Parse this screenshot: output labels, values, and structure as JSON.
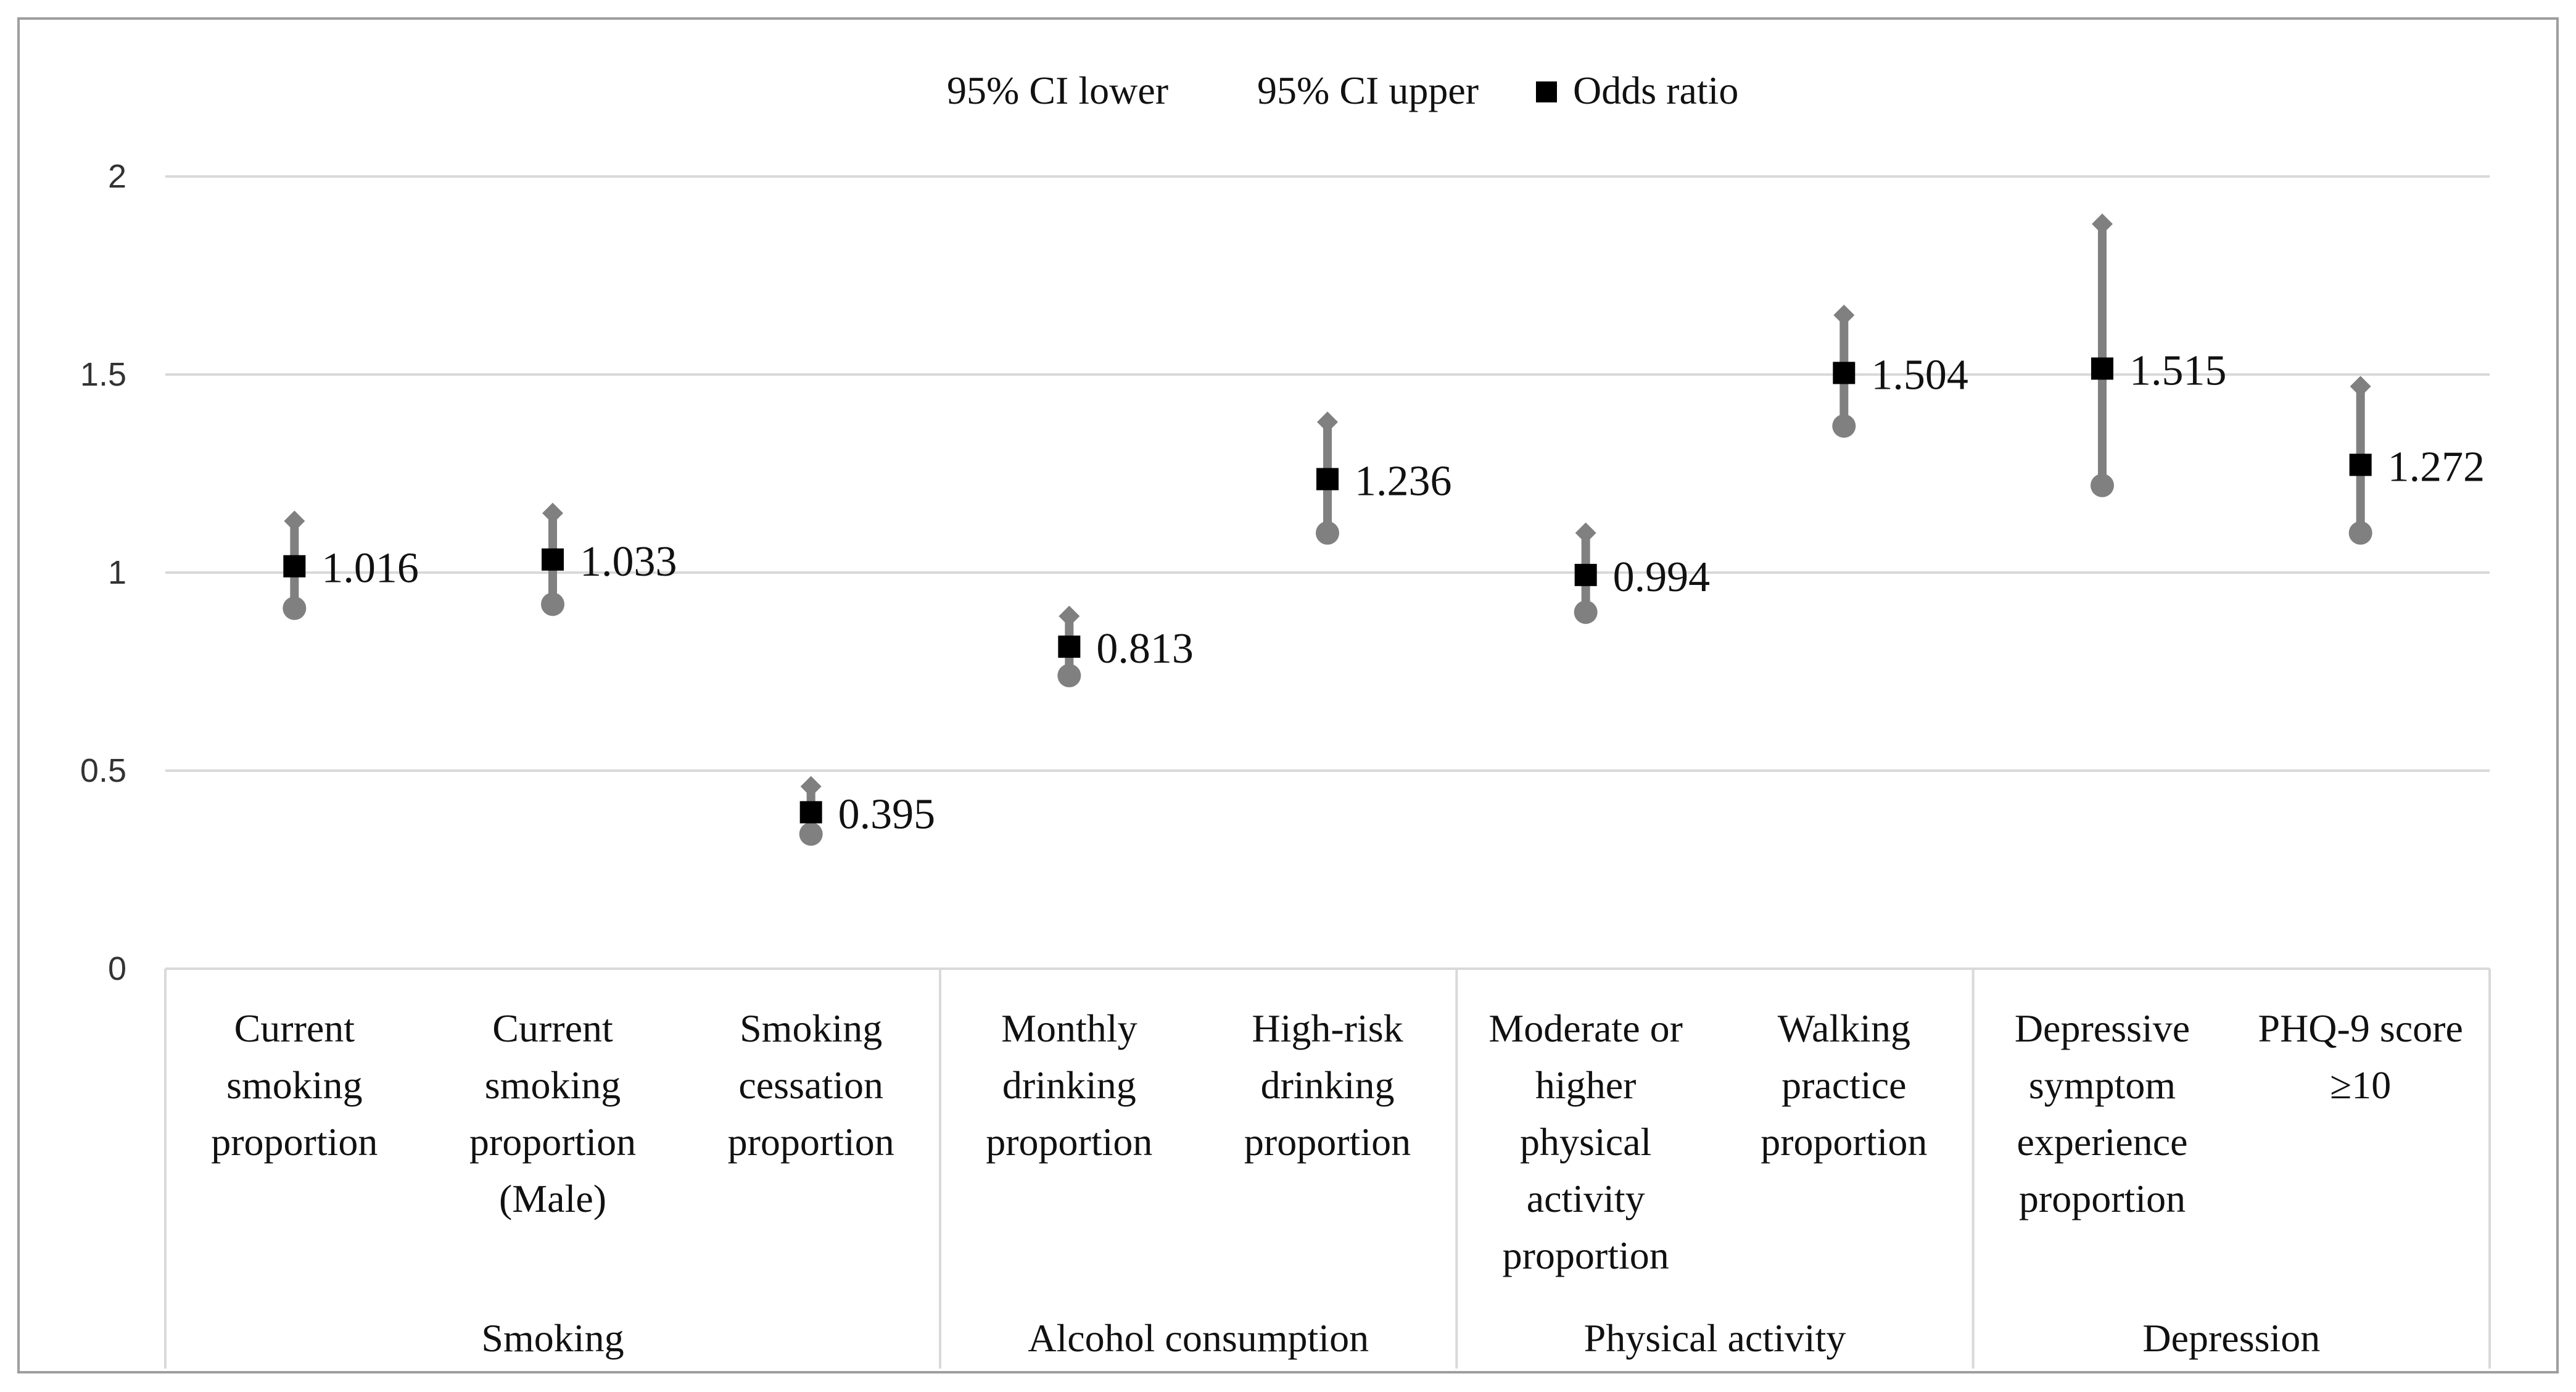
{
  "chart_data": {
    "type": "scatter",
    "title": "",
    "xlabel": "",
    "ylabel": "",
    "ylim": [
      0,
      2
    ],
    "yticks": [
      0,
      0.5,
      1,
      1.5,
      2
    ],
    "ytick_labels": [
      "0",
      "0.5",
      "1",
      "1.5",
      "2"
    ],
    "grid": true,
    "legend_position": "top-center",
    "legend": [
      {
        "name": "95% CI lower",
        "marker": "circle",
        "color": "#8a8a8a"
      },
      {
        "name": "95% CI upper",
        "marker": "diamond",
        "color": "#8a8a8a"
      },
      {
        "name": "Odds ratio",
        "marker": "square",
        "color": "#000000"
      }
    ],
    "categories": [
      {
        "lines": [
          "Current",
          "smoking",
          "proportion"
        ]
      },
      {
        "lines": [
          "Current",
          "smoking",
          "proportion",
          "(Male)"
        ]
      },
      {
        "lines": [
          "Smoking",
          "cessation",
          "proportion"
        ]
      },
      {
        "lines": [
          "Monthly",
          "drinking",
          "proportion"
        ]
      },
      {
        "lines": [
          "High-risk",
          "drinking",
          "proportion"
        ]
      },
      {
        "lines": [
          "Moderate or",
          "higher",
          "physical",
          "activity",
          "proportion"
        ]
      },
      {
        "lines": [
          "Walking",
          "practice",
          "proportion"
        ]
      },
      {
        "lines": [
          "Depressive",
          "symptom",
          "experience",
          "proportion"
        ]
      },
      {
        "lines": [
          "PHQ-9 score",
          "≥10"
        ]
      }
    ],
    "groups": [
      {
        "name": "Smoking",
        "span": [
          0,
          2
        ]
      },
      {
        "name": "Alcohol consumption",
        "span": [
          3,
          4
        ]
      },
      {
        "name": "Physical activity",
        "span": [
          5,
          6
        ]
      },
      {
        "name": "Depression",
        "span": [
          7,
          8
        ]
      }
    ],
    "series": [
      {
        "name": "95% CI lower",
        "values": [
          0.91,
          0.92,
          0.34,
          0.74,
          1.1,
          0.9,
          1.37,
          1.22,
          1.1
        ]
      },
      {
        "name": "95% CI upper",
        "values": [
          1.13,
          1.15,
          0.46,
          0.89,
          1.38,
          1.1,
          1.65,
          1.88,
          1.47
        ]
      },
      {
        "name": "Odds ratio",
        "values": [
          1.016,
          1.033,
          0.395,
          0.813,
          1.236,
          0.994,
          1.504,
          1.515,
          1.272
        ]
      }
    ],
    "data_labels": [
      "1.016",
      "1.033",
      "0.395",
      "0.813",
      "1.236",
      "0.994",
      "1.504",
      "1.515",
      "1.272"
    ],
    "colors": {
      "ci": "#808080",
      "odds": "#000000",
      "grid": "#d9d9d9",
      "axis_text": "#333333",
      "border": "#9e9e9e"
    }
  }
}
